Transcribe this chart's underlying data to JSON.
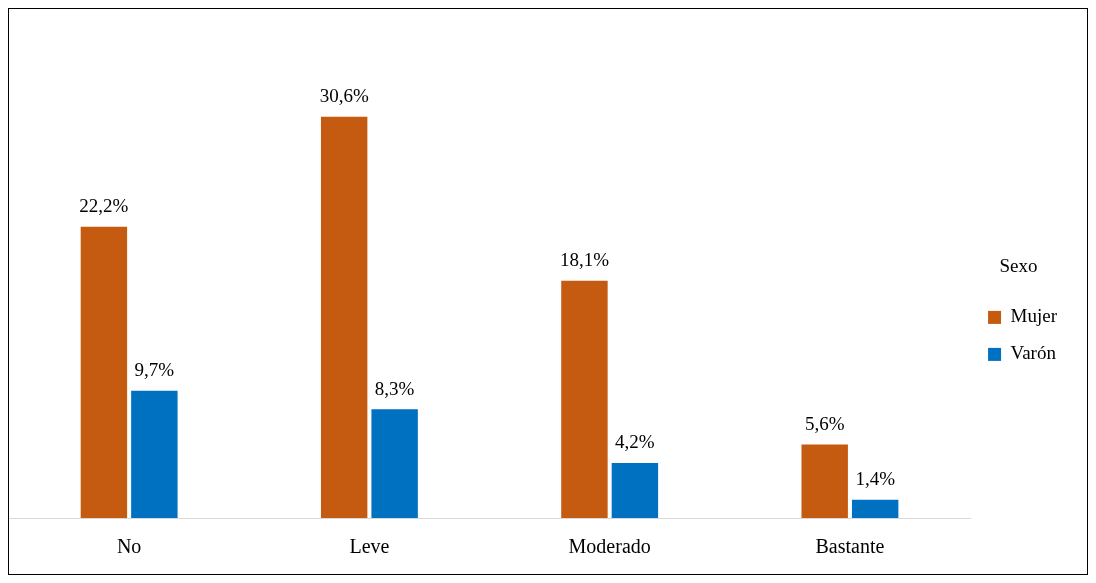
{
  "chart_data": {
    "type": "bar",
    "legend_title": "Sexo",
    "legend": "right",
    "categories": [
      "No",
      "Leve",
      "Moderado",
      "Bastante"
    ],
    "series": [
      {
        "name": "Mujer",
        "color": "#c55a11",
        "values": [
          22.2,
          30.6,
          18.1,
          5.6
        ],
        "value_labels": [
          "22,2%",
          "30,6%",
          "18,1%",
          "5,6%"
        ]
      },
      {
        "name": "Varón",
        "color": "#0070c0",
        "values": [
          9.7,
          8.3,
          4.2,
          1.4
        ],
        "value_labels": [
          "9,7%",
          "8,3%",
          "4,2%",
          "1,4%"
        ]
      }
    ]
  }
}
